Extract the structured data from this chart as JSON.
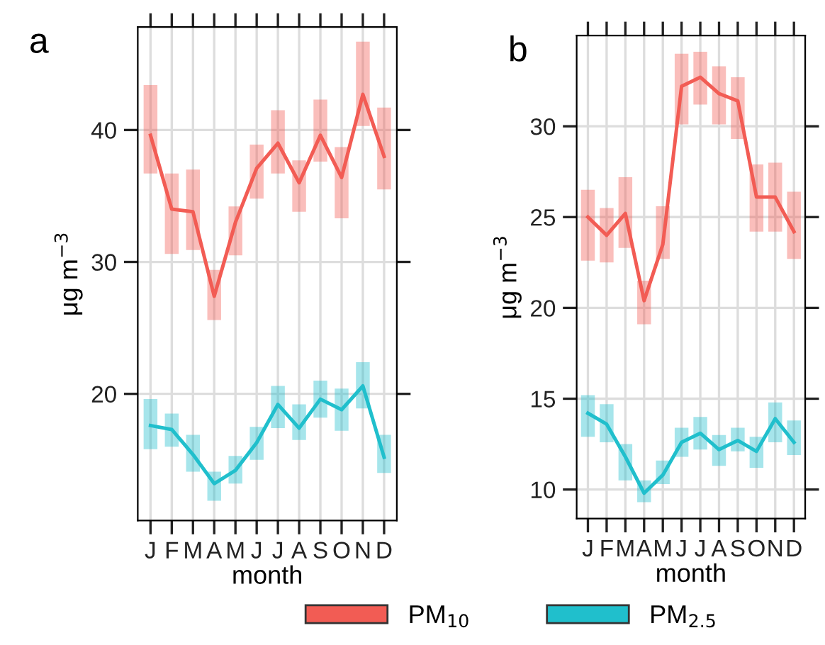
{
  "chart_data": [
    {
      "type": "line",
      "title": "a",
      "xlabel": "month",
      "ylabel": "μg m$^{−3}$",
      "categories": [
        "J",
        "F",
        "M",
        "A",
        "M",
        "J",
        "J",
        "A",
        "S",
        "O",
        "N",
        "D"
      ],
      "ylim": [
        10.4,
        47.8
      ],
      "yticks": [
        20,
        30,
        40
      ],
      "grid": true,
      "legend": "bottom",
      "series": [
        {
          "name": "PM$_{10}$",
          "color": "#f25c54",
          "values": [
            39.6,
            34.0,
            33.8,
            27.4,
            33.0,
            37.1,
            39.0,
            36.0,
            39.6,
            36.4,
            42.7,
            38.0
          ],
          "errors": [
            [
              36.7,
              43.4
            ],
            [
              30.6,
              36.7
            ],
            [
              30.9,
              37.0
            ],
            [
              25.6,
              29.4
            ],
            [
              30.5,
              34.2
            ],
            [
              34.8,
              38.9
            ],
            [
              36.7,
              41.5
            ],
            [
              33.8,
              37.7
            ],
            [
              37.6,
              42.3
            ],
            [
              33.3,
              38.7
            ],
            [
              40.3,
              46.7
            ],
            [
              35.5,
              41.7
            ]
          ]
        },
        {
          "name": "PM$_{2.5}$",
          "color": "#20bfcc",
          "values": [
            17.6,
            17.3,
            15.4,
            13.2,
            14.2,
            16.3,
            19.2,
            17.4,
            19.6,
            18.8,
            20.6,
            15.2
          ],
          "errors": [
            [
              15.8,
              19.6
            ],
            [
              16.0,
              18.5
            ],
            [
              14.1,
              16.9
            ],
            [
              11.9,
              14.1
            ],
            [
              13.2,
              15.3
            ],
            [
              15.0,
              17.5
            ],
            [
              17.4,
              20.6
            ],
            [
              16.5,
              19.2
            ],
            [
              18.2,
              21.0
            ],
            [
              17.2,
              20.4
            ],
            [
              18.9,
              22.4
            ],
            [
              14.0,
              16.9
            ]
          ]
        }
      ]
    },
    {
      "type": "line",
      "title": "b",
      "xlabel": "month",
      "ylabel": "μg m$^{−3}$",
      "categories": [
        "J",
        "F",
        "M",
        "A",
        "M",
        "J",
        "J",
        "A",
        "S",
        "O",
        "N",
        "D"
      ],
      "ylim": [
        8.4,
        35.0
      ],
      "yticks": [
        10,
        15,
        20,
        25,
        30
      ],
      "grid": true,
      "legend": "bottom",
      "series": [
        {
          "name": "PM$_{10}$",
          "color": "#f25c54",
          "values": [
            25.0,
            24.0,
            25.2,
            20.4,
            23.5,
            32.2,
            32.7,
            31.8,
            31.4,
            26.1,
            26.1,
            24.2
          ],
          "errors": [
            [
              22.6,
              26.5
            ],
            [
              22.5,
              25.5
            ],
            [
              23.3,
              27.2
            ],
            [
              19.1,
              21.5
            ],
            [
              22.7,
              25.6
            ],
            [
              30.1,
              34.0
            ],
            [
              31.2,
              34.1
            ],
            [
              30.1,
              33.3
            ],
            [
              29.3,
              32.7
            ],
            [
              24.2,
              27.9
            ],
            [
              24.2,
              28.0
            ],
            [
              22.7,
              26.4
            ]
          ]
        },
        {
          "name": "PM$_{2.5}$",
          "color": "#20bfcc",
          "values": [
            14.2,
            13.6,
            11.8,
            9.8,
            10.8,
            12.6,
            13.1,
            12.2,
            12.7,
            12.1,
            13.9,
            12.6
          ],
          "errors": [
            [
              12.9,
              15.2
            ],
            [
              12.6,
              14.7
            ],
            [
              10.5,
              12.5
            ],
            [
              9.3,
              10.5
            ],
            [
              10.3,
              11.6
            ],
            [
              11.8,
              13.4
            ],
            [
              12.2,
              14.0
            ],
            [
              11.3,
              13.0
            ],
            [
              12.1,
              13.4
            ],
            [
              11.2,
              12.9
            ],
            [
              12.6,
              14.8
            ],
            [
              11.9,
              13.8
            ]
          ]
        }
      ]
    }
  ]
}
